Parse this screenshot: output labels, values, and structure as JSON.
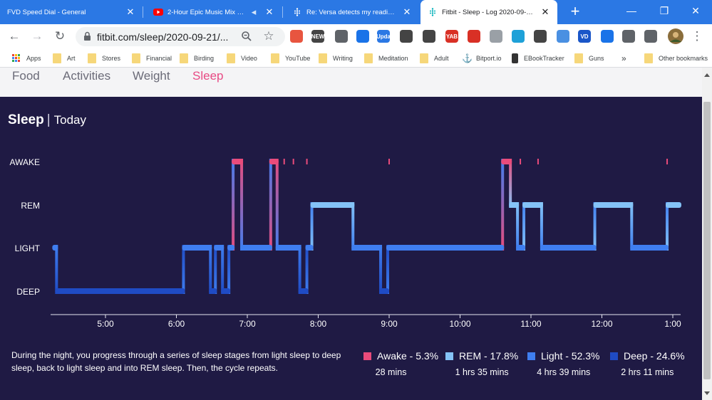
{
  "tabs": [
    {
      "title": "FVD Speed Dial - General",
      "favicon": "none",
      "active": false
    },
    {
      "title": "2-Hour Epic Music Mix | Audion",
      "favicon": "youtube-icon",
      "active": false
    },
    {
      "title": "Re: Versa detects my reading as if we",
      "favicon": "fitbit-icon",
      "active": false
    },
    {
      "title": "Fitbit - Sleep - Log 2020-09-21 28970",
      "favicon": "fitbit-icon",
      "active": true
    }
  ],
  "address_bar": {
    "url": "fitbit.com/sleep/2020-09-21/..."
  },
  "extensions": [
    {
      "name": "color-wheel-icon",
      "color": "#e8553f",
      "label": ""
    },
    {
      "name": "news-icon",
      "color": "#444444",
      "label": "NEW"
    },
    {
      "name": "circle-arrow-icon",
      "color": "#5f6368",
      "label": ""
    },
    {
      "name": "download-arrow-icon",
      "color": "#1a73e8",
      "label": ""
    },
    {
      "name": "update-icon",
      "color": "#2b78e4",
      "label": "Upda"
    },
    {
      "name": "cloud-icon",
      "color": "#444444",
      "label": ""
    },
    {
      "name": "at-sign-icon",
      "color": "#444444",
      "label": ""
    },
    {
      "name": "yab-icon",
      "color": "#d93025",
      "label": "YAB"
    },
    {
      "name": "hand-icon",
      "color": "#d93025",
      "label": ""
    },
    {
      "name": "docs-icon",
      "color": "#9aa0a6",
      "label": ""
    },
    {
      "name": "magnifier-icon",
      "color": "#1ea1d8",
      "label": ""
    },
    {
      "name": "dots-icon",
      "color": "#444444",
      "label": ""
    },
    {
      "name": "play-icon",
      "color": "#4a90e2",
      "label": ""
    },
    {
      "name": "vd-icon",
      "color": "#1a56c8",
      "label": "VD"
    },
    {
      "name": "download-circle-icon",
      "color": "#1a73e8",
      "label": ""
    },
    {
      "name": "puzzle-icon",
      "color": "#5f6368",
      "label": ""
    },
    {
      "name": "playlist-icon",
      "color": "#5f6368",
      "label": ""
    }
  ],
  "bookmarks": [
    {
      "label": "Apps",
      "icon": "apps-icon"
    },
    {
      "label": "Art",
      "icon": "folder-icon"
    },
    {
      "label": "Stores",
      "icon": "folder-icon"
    },
    {
      "label": "Financial",
      "icon": "folder-icon"
    },
    {
      "label": "Birding",
      "icon": "folder-icon"
    },
    {
      "label": "Video",
      "icon": "folder-icon"
    },
    {
      "label": "YouTube",
      "icon": "folder-icon"
    },
    {
      "label": "Writing",
      "icon": "folder-icon"
    },
    {
      "label": "Meditation",
      "icon": "folder-icon"
    },
    {
      "label": "Adult",
      "icon": "folder-icon"
    },
    {
      "label": "Bitport.io",
      "icon": "anchor-icon"
    },
    {
      "label": "EBookTracker",
      "icon": "phone-icon"
    },
    {
      "label": "Guns",
      "icon": "folder-icon"
    }
  ],
  "bookmarks_overflow": "»",
  "other_bookmarks": "Other bookmarks",
  "nav": [
    {
      "label": "Food",
      "active": false
    },
    {
      "label": "Activities",
      "active": false
    },
    {
      "label": "Weight",
      "active": false
    },
    {
      "label": "Sleep",
      "active": true
    }
  ],
  "heading": {
    "title": "Sleep",
    "separator": "|",
    "subtitle": "Today"
  },
  "colors": {
    "awake": "#e94b7b",
    "rem": "#84c3f7",
    "light": "#3f7ef0",
    "deep": "#1f4bc4",
    "background": "#1f1a44"
  },
  "chart_data": {
    "type": "hypnogram",
    "stages": [
      "AWAKE",
      "REM",
      "LIGHT",
      "DEEP"
    ],
    "x_ticks": [
      {
        "label": "5:00",
        "hour": 5.0
      },
      {
        "label": "6:00",
        "hour": 6.0
      },
      {
        "label": "7:00",
        "hour": 7.0
      },
      {
        "label": "8:00",
        "hour": 8.0
      },
      {
        "label": "9:00",
        "hour": 9.0
      },
      {
        "label": "10:00",
        "hour": 10.0
      },
      {
        "label": "11:00",
        "hour": 11.0
      },
      {
        "label": "12:00",
        "hour": 12.0
      },
      {
        "label": "1:00",
        "hour": 13.0
      }
    ],
    "x_range_hours": [
      4.25,
      13.1
    ],
    "segments": [
      {
        "stage": "LIGHT",
        "start": 4.27,
        "end": 4.31
      },
      {
        "stage": "DEEP",
        "start": 4.31,
        "end": 6.1
      },
      {
        "stage": "LIGHT",
        "start": 6.1,
        "end": 6.48
      },
      {
        "stage": "DEEP",
        "start": 6.48,
        "end": 6.55
      },
      {
        "stage": "LIGHT",
        "start": 6.55,
        "end": 6.65
      },
      {
        "stage": "DEEP",
        "start": 6.65,
        "end": 6.74
      },
      {
        "stage": "LIGHT",
        "start": 6.74,
        "end": 6.8
      },
      {
        "stage": "AWAKE",
        "start": 6.8,
        "end": 6.92
      },
      {
        "stage": "LIGHT",
        "start": 6.92,
        "end": 7.33
      },
      {
        "stage": "AWAKE",
        "start": 7.33,
        "end": 7.42
      },
      {
        "stage": "LIGHT",
        "start": 7.42,
        "end": 7.74
      },
      {
        "stage": "DEEP",
        "start": 7.74,
        "end": 7.84
      },
      {
        "stage": "LIGHT",
        "start": 7.84,
        "end": 7.91
      },
      {
        "stage": "REM",
        "start": 7.91,
        "end": 8.49
      },
      {
        "stage": "LIGHT",
        "start": 8.49,
        "end": 8.88
      },
      {
        "stage": "DEEP",
        "start": 8.88,
        "end": 8.98
      },
      {
        "stage": "LIGHT",
        "start": 8.98,
        "end": 10.6
      },
      {
        "stage": "AWAKE",
        "start": 10.6,
        "end": 10.71
      },
      {
        "stage": "REM",
        "start": 10.71,
        "end": 10.81
      },
      {
        "stage": "LIGHT",
        "start": 10.81,
        "end": 10.9
      },
      {
        "stage": "REM",
        "start": 10.9,
        "end": 11.15
      },
      {
        "stage": "LIGHT",
        "start": 11.15,
        "end": 11.9
      },
      {
        "stage": "REM",
        "start": 11.9,
        "end": 12.42
      },
      {
        "stage": "LIGHT",
        "start": 12.42,
        "end": 12.92
      },
      {
        "stage": "REM",
        "start": 12.92,
        "end": 13.1
      }
    ],
    "brief_awake_marks": [
      7.52,
      7.65,
      7.84,
      9.0,
      10.85,
      11.1,
      12.92
    ],
    "legend": [
      {
        "stage": "awake",
        "label": "Awake - 5.3%",
        "percent": 5.3,
        "duration": "28 mins"
      },
      {
        "stage": "rem",
        "label": "REM - 17.8%",
        "percent": 17.8,
        "duration": "1 hrs 35 mins"
      },
      {
        "stage": "light",
        "label": "Light - 52.3%",
        "percent": 52.3,
        "duration": "4 hrs 39 mins"
      },
      {
        "stage": "deep",
        "label": "Deep - 24.6%",
        "percent": 24.6,
        "duration": "2 hrs 11 mins"
      }
    ]
  },
  "description": "During the night, you progress through a series of sleep stages from light sleep to deep sleep, back to light sleep and into REM sleep. Then, the cycle repeats."
}
